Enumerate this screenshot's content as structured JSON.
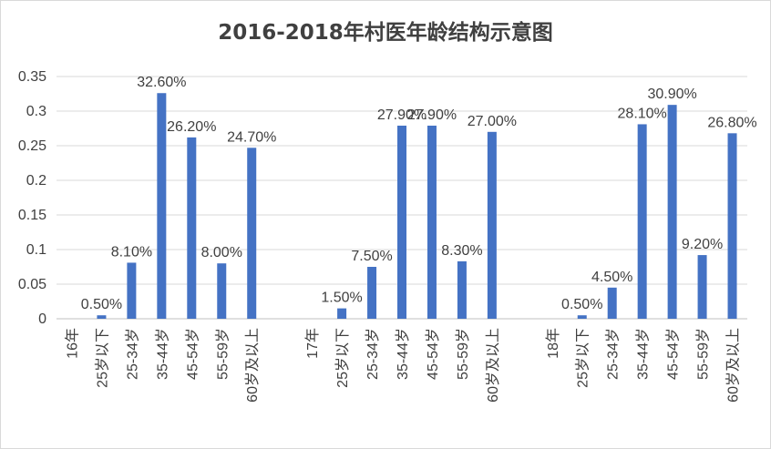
{
  "chart_data": {
    "type": "bar",
    "title": "2016-2018年村医年龄结构示意图",
    "ylim": [
      0,
      0.35
    ],
    "yticks": [
      "0",
      "0.05",
      "0.1",
      "0.15",
      "0.2",
      "0.25",
      "0.3",
      "0.35"
    ],
    "grid": true,
    "legend": "none",
    "color": "#4472C4",
    "categories": [
      "16年",
      "25岁以下",
      "25-34岁",
      "35-44岁",
      "45-54岁",
      "55-59岁",
      "60岁及以上",
      "",
      "17年",
      "25岁以下",
      "25-34岁",
      "35-44岁",
      "45-54岁",
      "55-59岁",
      "60岁及以上",
      "",
      "18年",
      "25岁以下",
      "25-34岁",
      "35-44岁",
      "45-54岁",
      "55-59岁",
      "60岁及以上"
    ],
    "values": [
      null,
      0.005,
      0.081,
      0.326,
      0.262,
      0.08,
      0.247,
      null,
      null,
      0.015,
      0.075,
      0.279,
      0.279,
      0.083,
      0.27,
      null,
      null,
      0.005,
      0.045,
      0.281,
      0.309,
      0.092,
      0.268
    ],
    "data_labels": [
      "",
      "0.50%",
      "8.10%",
      "32.60%",
      "26.20%",
      "8.00%",
      "24.70%",
      "",
      "",
      "1.50%",
      "7.50%",
      "27.90%",
      "27.90%",
      "8.30%",
      "27.00%",
      "",
      "",
      "0.50%",
      "4.50%",
      "28.10%",
      "30.90%",
      "9.20%",
      "26.80%"
    ]
  }
}
